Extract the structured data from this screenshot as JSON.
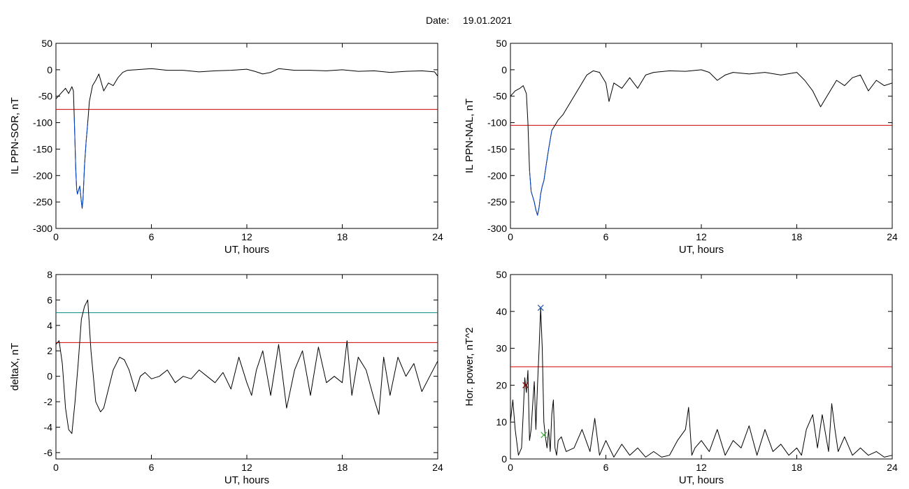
{
  "figure": {
    "date_label": "Date:",
    "date_value": "19.01.2021"
  },
  "chart_data": [
    {
      "id": "p1",
      "type": "line",
      "title": "",
      "xlabel": "UT, hours",
      "ylabel": "IL PPN-SOR, nT",
      "xlim": [
        0,
        24
      ],
      "ylim": [
        -300,
        50
      ],
      "xticks": [
        0,
        6,
        12,
        18,
        24
      ],
      "yticks": [
        50,
        0,
        -50,
        -100,
        -150,
        -200,
        -250,
        -300
      ],
      "grid": false,
      "series": [
        {
          "color": "#000000",
          "x": [
            0,
            0.3,
            0.6,
            0.8,
            1.0,
            1.1,
            1.15,
            1.2,
            1.25,
            1.3,
            1.35,
            1.4,
            1.5,
            1.6,
            1.65,
            1.7,
            1.8,
            1.9,
            2.0,
            2.1,
            2.3,
            2.5,
            2.7,
            3.0,
            3.3,
            3.6,
            3.9,
            4.2,
            4.5,
            5,
            6,
            7,
            8,
            9,
            10,
            11,
            12,
            12.5,
            13,
            13.5,
            14,
            15,
            16,
            17,
            18,
            19,
            20,
            21,
            22,
            23,
            23.8,
            24
          ],
          "y": [
            -55,
            -45,
            -35,
            -45,
            -32,
            -40,
            -90,
            -140,
            -190,
            -225,
            -235,
            -230,
            -220,
            -250,
            -262,
            -245,
            -180,
            -135,
            -100,
            -60,
            -30,
            -20,
            -8,
            -40,
            -25,
            -30,
            -15,
            -5,
            -1,
            0,
            2,
            -1,
            -1,
            -4,
            -2,
            -1,
            1,
            -3,
            -8,
            -5,
            2,
            -1,
            -1,
            -2,
            0,
            -3,
            -2,
            -5,
            -3,
            -2,
            -4,
            -12
          ]
        },
        {
          "color": "#0044cc",
          "x": [
            1.15,
            1.2,
            1.25,
            1.3,
            1.35,
            1.4,
            1.5,
            1.6,
            1.65,
            1.7,
            1.8,
            1.9,
            2.0
          ],
          "y": [
            -90,
            -140,
            -190,
            -225,
            -235,
            -230,
            -220,
            -250,
            -262,
            -245,
            -180,
            -135,
            -100
          ]
        }
      ],
      "hlines": [
        {
          "y": -75,
          "color": "#cc0000"
        }
      ],
      "markers": []
    },
    {
      "id": "p2",
      "type": "line",
      "title": "",
      "xlabel": "UT, hours",
      "ylabel": "IL PPN-NAL, nT",
      "xlim": [
        0,
        24
      ],
      "ylim": [
        -300,
        50
      ],
      "xticks": [
        0,
        6,
        12,
        18,
        24
      ],
      "yticks": [
        50,
        0,
        -50,
        -100,
        -150,
        -200,
        -250,
        -300
      ],
      "grid": false,
      "series": [
        {
          "color": "#000000",
          "x": [
            0,
            0.3,
            0.6,
            0.8,
            1.0,
            1.1,
            1.2,
            1.3,
            1.4,
            1.5,
            1.6,
            1.7,
            1.8,
            1.9,
            2.0,
            2.1,
            2.2,
            2.4,
            2.6,
            2.8,
            3.0,
            3.3,
            3.6,
            4.0,
            4.4,
            4.8,
            5.2,
            5.6,
            6.0,
            6.2,
            6.5,
            7,
            7.5,
            8,
            8.5,
            9,
            10,
            11,
            12,
            12.5,
            13,
            13.5,
            14,
            15,
            16,
            17,
            18,
            18.5,
            19,
            19.5,
            20,
            20.5,
            21,
            21.5,
            22,
            22.5,
            23,
            23.5,
            24
          ],
          "y": [
            -50,
            -40,
            -35,
            -30,
            -45,
            -100,
            -190,
            -230,
            -240,
            -250,
            -265,
            -275,
            -260,
            -235,
            -220,
            -210,
            -190,
            -150,
            -115,
            -105,
            -95,
            -85,
            -70,
            -50,
            -30,
            -10,
            -2,
            -5,
            -25,
            -60,
            -25,
            -35,
            -15,
            -35,
            -10,
            -5,
            -2,
            -3,
            0,
            -5,
            -20,
            -10,
            -5,
            -8,
            -5,
            -10,
            -5,
            -20,
            -40,
            -70,
            -45,
            -20,
            -30,
            -15,
            -10,
            -40,
            -20,
            -30,
            -25
          ]
        },
        {
          "color": "#0044cc",
          "x": [
            1.2,
            1.3,
            1.4,
            1.5,
            1.6,
            1.7,
            1.8,
            1.9,
            2.0,
            2.1,
            2.2,
            2.4,
            2.6
          ],
          "y": [
            -190,
            -230,
            -240,
            -250,
            -265,
            -275,
            -260,
            -235,
            -220,
            -210,
            -190,
            -150,
            -115
          ]
        }
      ],
      "hlines": [
        {
          "y": -105,
          "color": "#cc0000"
        }
      ],
      "markers": []
    },
    {
      "id": "p3",
      "type": "line",
      "title": "",
      "xlabel": "UT, hours",
      "ylabel": "deltaX, nT",
      "xlim": [
        0,
        24
      ],
      "ylim": [
        -6.5,
        8
      ],
      "xticks": [
        0,
        6,
        12,
        18,
        24
      ],
      "yticks": [
        8,
        6,
        4,
        2,
        0,
        -2,
        -4,
        -6
      ],
      "grid": false,
      "series": [
        {
          "color": "#000000",
          "x": [
            0,
            0.2,
            0.4,
            0.6,
            0.8,
            1.0,
            1.2,
            1.4,
            1.6,
            1.8,
            2.0,
            2.2,
            2.5,
            2.8,
            3.0,
            3.3,
            3.6,
            4.0,
            4.3,
            4.6,
            5.0,
            5.3,
            5.6,
            6,
            6.5,
            7,
            7.5,
            8,
            8.5,
            9,
            9.5,
            10,
            10.5,
            11,
            11.5,
            12,
            12.3,
            12.6,
            13,
            13.5,
            14,
            14.5,
            15,
            15.5,
            16,
            16.5,
            17,
            17.5,
            18,
            18.3,
            18.6,
            19,
            19.5,
            20,
            20.3,
            20.6,
            21,
            21.5,
            22,
            22.5,
            23,
            23.5,
            24
          ],
          "y": [
            2.5,
            2.8,
            1.0,
            -2.5,
            -4.2,
            -4.5,
            -2.0,
            1.0,
            4.5,
            5.5,
            6.0,
            2.0,
            -2.0,
            -2.8,
            -2.5,
            -1.0,
            0.5,
            1.5,
            1.3,
            0.5,
            -1.2,
            0.0,
            0.3,
            -0.2,
            0.0,
            0.5,
            -0.5,
            0.0,
            -0.2,
            0.5,
            0.0,
            -0.5,
            0.3,
            -1.0,
            1.5,
            -0.5,
            -1.5,
            0.5,
            2.0,
            -1.5,
            2.5,
            -2.5,
            0.5,
            2.0,
            -1.5,
            2.3,
            -0.5,
            0.0,
            -0.5,
            2.8,
            -1.5,
            1.5,
            0.5,
            -1.8,
            -3.0,
            1.5,
            -1.5,
            1.5,
            0.0,
            1.0,
            -1.2,
            0.0,
            1.2
          ]
        }
      ],
      "hlines": [
        {
          "y": 5.0,
          "color": "#008888"
        },
        {
          "y": 2.65,
          "color": "#cc0000"
        }
      ],
      "markers": []
    },
    {
      "id": "p4",
      "type": "line",
      "title": "",
      "xlabel": "UT, hours",
      "ylabel": "Hor. power, nT^2",
      "xlim": [
        0,
        24
      ],
      "ylim": [
        0,
        50
      ],
      "xticks": [
        0,
        6,
        12,
        18,
        24
      ],
      "yticks": [
        50,
        40,
        30,
        20,
        10,
        0
      ],
      "grid": false,
      "series": [
        {
          "color": "#000000",
          "x": [
            0,
            0.15,
            0.3,
            0.5,
            0.7,
            0.8,
            0.9,
            1.0,
            1.1,
            1.2,
            1.3,
            1.4,
            1.5,
            1.6,
            1.7,
            1.8,
            1.9,
            2.0,
            2.1,
            2.2,
            2.3,
            2.4,
            2.5,
            2.6,
            2.7,
            2.8,
            2.9,
            3.0,
            3.2,
            3.5,
            4,
            4.5,
            5,
            5.3,
            5.6,
            6,
            6.5,
            7,
            7.5,
            8,
            8.5,
            9,
            9.5,
            10,
            10.5,
            11,
            11.2,
            11.4,
            11.6,
            12,
            12.5,
            13,
            13.5,
            14,
            14.5,
            15,
            15.5,
            16,
            16.5,
            17,
            17.5,
            18,
            18.3,
            18.6,
            19,
            19.3,
            19.6,
            20,
            20.2,
            20.4,
            20.6,
            21,
            21.5,
            22,
            22.5,
            23,
            23.5,
            24
          ],
          "y": [
            10,
            16,
            8,
            1,
            3,
            12,
            22,
            18,
            24,
            5,
            8,
            15,
            21,
            8,
            20,
            30,
            41,
            30,
            10,
            6,
            3,
            8,
            2,
            12,
            16,
            3,
            1,
            5,
            6,
            2,
            3,
            8,
            2,
            11,
            1,
            5,
            0.5,
            4,
            1,
            3,
            0.5,
            2,
            0.5,
            1,
            5,
            8,
            14,
            1,
            3,
            5,
            2,
            8,
            1,
            5,
            3,
            9,
            1,
            8,
            2,
            4,
            1,
            3,
            1,
            8,
            12,
            3,
            12,
            2,
            15,
            8,
            2,
            6,
            1,
            3,
            1,
            2,
            0.5,
            1
          ]
        }
      ],
      "hlines": [
        {
          "y": 25,
          "color": "#cc0000"
        }
      ],
      "markers": [
        {
          "x": 1.9,
          "y": 41,
          "color": "#2255aa",
          "symbol": "x"
        },
        {
          "x": 0.95,
          "y": 20,
          "color": "#880000",
          "symbol": "x"
        },
        {
          "x": 2.1,
          "y": 6.5,
          "color": "#44aa44",
          "symbol": "x"
        }
      ]
    }
  ]
}
